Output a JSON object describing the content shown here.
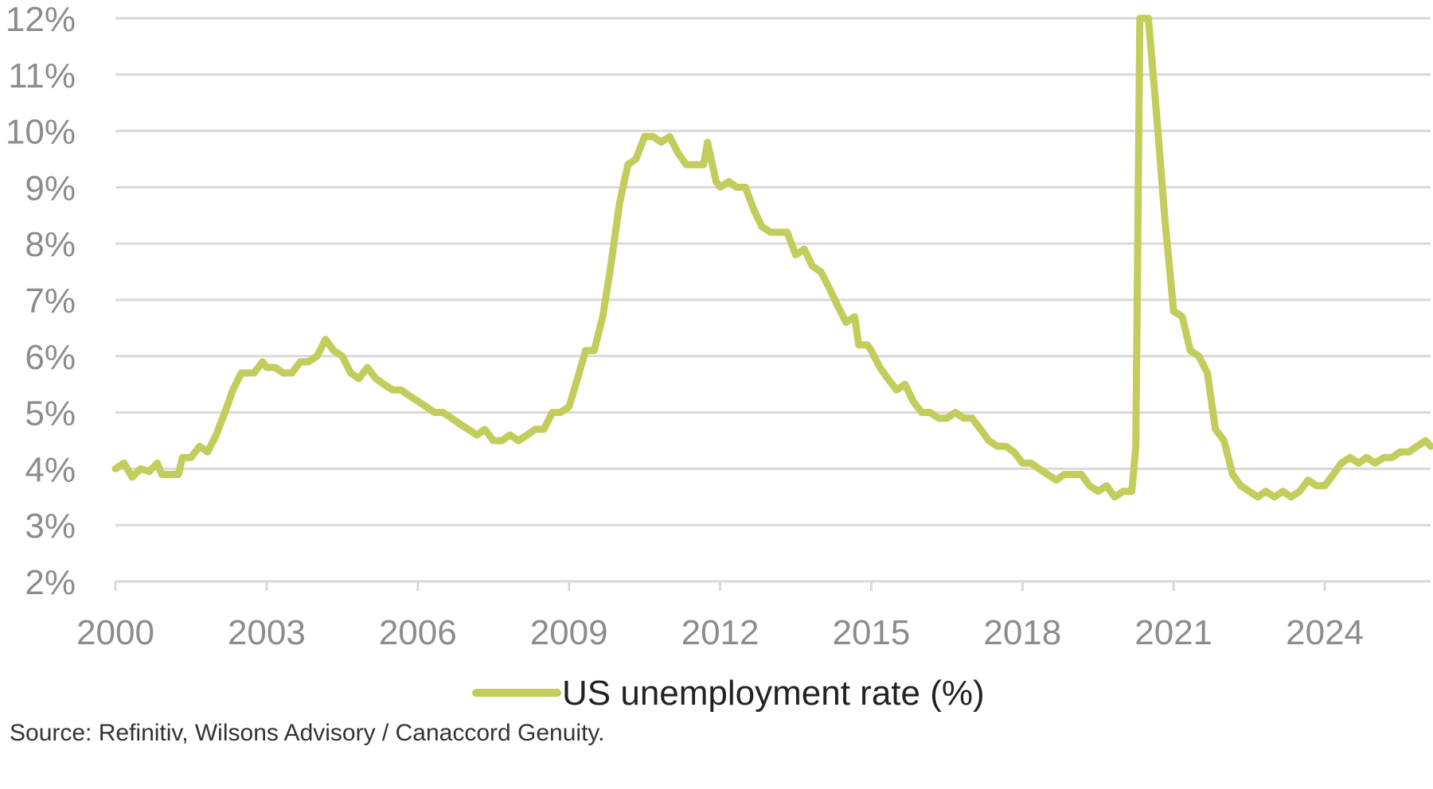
{
  "chart_data": {
    "type": "line",
    "ylim": [
      2,
      12
    ],
    "yticks": [
      "2%",
      "3%",
      "4%",
      "5%",
      "6%",
      "7%",
      "8%",
      "9%",
      "10%",
      "11%",
      "12%"
    ],
    "xlim": [
      2000,
      2026.1
    ],
    "xticks": [
      "2000",
      "2003",
      "2006",
      "2009",
      "2012",
      "2015",
      "2018",
      "2021",
      "2024"
    ],
    "grid": "horizontal",
    "legend": "bottom-center",
    "color": "#c2cd5c",
    "series": [
      {
        "name": "US unemployment rate (%)",
        "points": [
          [
            2000.0,
            4.0
          ],
          [
            2000.17,
            4.1
          ],
          [
            2000.33,
            3.85
          ],
          [
            2000.5,
            4.0
          ],
          [
            2000.67,
            3.95
          ],
          [
            2000.83,
            4.1
          ],
          [
            2000.92,
            3.9
          ],
          [
            2001.0,
            3.9
          ],
          [
            2001.25,
            3.9
          ],
          [
            2001.33,
            4.2
          ],
          [
            2001.5,
            4.2
          ],
          [
            2001.67,
            4.4
          ],
          [
            2001.83,
            4.3
          ],
          [
            2002.0,
            4.6
          ],
          [
            2002.17,
            5.0
          ],
          [
            2002.33,
            5.4
          ],
          [
            2002.5,
            5.7
          ],
          [
            2002.75,
            5.7
          ],
          [
            2002.92,
            5.9
          ],
          [
            2003.0,
            5.8
          ],
          [
            2003.17,
            5.8
          ],
          [
            2003.33,
            5.7
          ],
          [
            2003.5,
            5.7
          ],
          [
            2003.67,
            5.9
          ],
          [
            2003.83,
            5.9
          ],
          [
            2004.0,
            6.0
          ],
          [
            2004.17,
            6.3
          ],
          [
            2004.33,
            6.1
          ],
          [
            2004.5,
            6.0
          ],
          [
            2004.67,
            5.7
          ],
          [
            2004.83,
            5.6
          ],
          [
            2005.0,
            5.8
          ],
          [
            2005.17,
            5.6
          ],
          [
            2005.33,
            5.5
          ],
          [
            2005.5,
            5.4
          ],
          [
            2005.67,
            5.4
          ],
          [
            2005.83,
            5.3
          ],
          [
            2006.0,
            5.2
          ],
          [
            2006.17,
            5.1
          ],
          [
            2006.33,
            5.0
          ],
          [
            2006.5,
            5.0
          ],
          [
            2006.67,
            4.9
          ],
          [
            2006.83,
            4.8
          ],
          [
            2007.0,
            4.7
          ],
          [
            2007.17,
            4.6
          ],
          [
            2007.33,
            4.7
          ],
          [
            2007.5,
            4.5
          ],
          [
            2007.67,
            4.5
          ],
          [
            2007.83,
            4.6
          ],
          [
            2008.0,
            4.5
          ],
          [
            2008.17,
            4.6
          ],
          [
            2008.33,
            4.7
          ],
          [
            2008.5,
            4.7
          ],
          [
            2008.67,
            5.0
          ],
          [
            2008.83,
            5.0
          ],
          [
            2009.0,
            5.1
          ],
          [
            2009.17,
            5.6
          ],
          [
            2009.33,
            6.1
          ],
          [
            2009.5,
            6.1
          ],
          [
            2009.67,
            6.7
          ],
          [
            2009.83,
            7.6
          ],
          [
            2010.0,
            8.7
          ],
          [
            2010.17,
            9.4
          ],
          [
            2010.33,
            9.5
          ],
          [
            2010.5,
            9.9
          ],
          [
            2010.67,
            9.9
          ],
          [
            2010.83,
            9.8
          ],
          [
            2011.0,
            9.9
          ],
          [
            2011.17,
            9.6
          ],
          [
            2011.33,
            9.4
          ],
          [
            2011.5,
            9.4
          ],
          [
            2011.67,
            9.4
          ],
          [
            2011.75,
            9.8
          ],
          [
            2011.92,
            9.1
          ],
          [
            2012.0,
            9.0
          ],
          [
            2012.17,
            9.1
          ],
          [
            2012.33,
            9.0
          ],
          [
            2012.5,
            9.0
          ],
          [
            2012.67,
            8.6
          ],
          [
            2012.83,
            8.3
          ],
          [
            2013.0,
            8.2
          ],
          [
            2013.17,
            8.2
          ],
          [
            2013.33,
            8.2
          ],
          [
            2013.5,
            7.8
          ],
          [
            2013.67,
            7.9
          ],
          [
            2013.83,
            7.6
          ],
          [
            2014.0,
            7.5
          ],
          [
            2014.17,
            7.2
          ],
          [
            2014.33,
            6.9
          ],
          [
            2014.5,
            6.6
          ],
          [
            2014.67,
            6.7
          ],
          [
            2014.75,
            6.2
          ],
          [
            2014.92,
            6.2
          ],
          [
            2015.0,
            6.1
          ],
          [
            2015.17,
            5.8
          ],
          [
            2015.33,
            5.6
          ],
          [
            2015.5,
            5.4
          ],
          [
            2015.67,
            5.5
          ],
          [
            2015.83,
            5.2
          ],
          [
            2016.0,
            5.0
          ],
          [
            2016.17,
            5.0
          ],
          [
            2016.33,
            4.9
          ],
          [
            2016.5,
            4.9
          ],
          [
            2016.67,
            5.0
          ],
          [
            2016.83,
            4.9
          ],
          [
            2017.0,
            4.9
          ],
          [
            2017.17,
            4.7
          ],
          [
            2017.33,
            4.5
          ],
          [
            2017.5,
            4.4
          ],
          [
            2017.67,
            4.4
          ],
          [
            2017.83,
            4.3
          ],
          [
            2018.0,
            4.1
          ],
          [
            2018.17,
            4.1
          ],
          [
            2018.33,
            4.0
          ],
          [
            2018.5,
            3.9
          ],
          [
            2018.67,
            3.8
          ],
          [
            2018.83,
            3.9
          ],
          [
            2019.0,
            3.9
          ],
          [
            2019.17,
            3.9
          ],
          [
            2019.33,
            3.7
          ],
          [
            2019.5,
            3.6
          ],
          [
            2019.67,
            3.7
          ],
          [
            2019.83,
            3.5
          ],
          [
            2020.0,
            3.6
          ],
          [
            2020.17,
            3.6
          ],
          [
            2020.25,
            4.4
          ],
          [
            2020.33,
            12.0
          ],
          [
            2020.5,
            12.0
          ],
          [
            2020.67,
            10.2
          ],
          [
            2020.83,
            8.4
          ],
          [
            2021.0,
            6.8
          ],
          [
            2021.17,
            6.7
          ],
          [
            2021.33,
            6.1
          ],
          [
            2021.5,
            6.0
          ],
          [
            2021.67,
            5.7
          ],
          [
            2021.83,
            4.7
          ],
          [
            2022.0,
            4.5
          ],
          [
            2022.17,
            3.9
          ],
          [
            2022.33,
            3.7
          ],
          [
            2022.5,
            3.6
          ],
          [
            2022.67,
            3.5
          ],
          [
            2022.83,
            3.6
          ],
          [
            2023.0,
            3.5
          ],
          [
            2023.17,
            3.6
          ],
          [
            2023.33,
            3.5
          ],
          [
            2023.5,
            3.6
          ],
          [
            2023.67,
            3.8
          ],
          [
            2023.83,
            3.7
          ],
          [
            2024.0,
            3.7
          ],
          [
            2024.17,
            3.9
          ],
          [
            2024.33,
            4.1
          ],
          [
            2024.5,
            4.2
          ],
          [
            2024.67,
            4.1
          ],
          [
            2024.83,
            4.2
          ],
          [
            2025.0,
            4.1
          ],
          [
            2025.17,
            4.2
          ],
          [
            2025.33,
            4.2
          ],
          [
            2025.5,
            4.3
          ],
          [
            2025.67,
            4.3
          ],
          [
            2025.83,
            4.4
          ],
          [
            2026.0,
            4.5
          ],
          [
            2026.1,
            4.4
          ]
        ]
      }
    ]
  },
  "source": "Source: Refinitiv, Wilsons Advisory / Canaccord Genuity."
}
